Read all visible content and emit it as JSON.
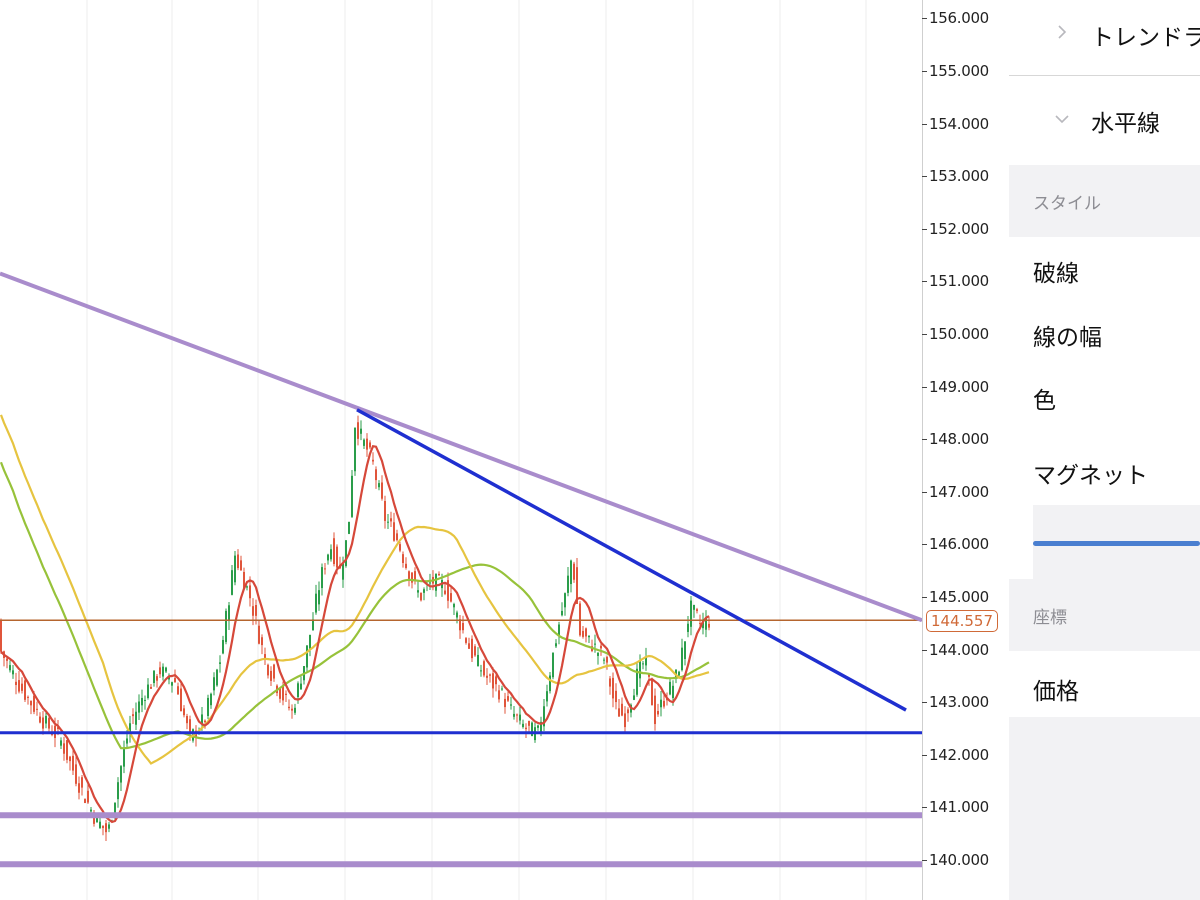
{
  "price_axis": {
    "ticks": [
      "156.000",
      "155.000",
      "154.000",
      "153.000",
      "152.000",
      "151.000",
      "150.000",
      "149.000",
      "148.000",
      "147.000",
      "146.000",
      "145.000",
      "144.000",
      "143.000",
      "142.000",
      "141.000",
      "140.000"
    ],
    "last_price": "144.557"
  },
  "colors": {
    "up_candle": "#2a9d4a",
    "down_candle": "#e0553b",
    "ma_fast": "#d6483a",
    "ma_mid": "#e6c440",
    "ma_slow": "#97c23a",
    "resistance_trend": "#a98ccc",
    "support_trend": "#1f2fd0",
    "horizontal_support": "#1f2fd0",
    "horizontal_lows": "#a98ccc",
    "current_price_line": "#b5652e",
    "accent": "#4a7fd0"
  },
  "panel": {
    "tree": [
      {
        "label": "トレンドラ",
        "icon": "chevron-right-icon"
      },
      {
        "label": "水平線",
        "icon": "chevron-down-icon"
      }
    ],
    "style_header": "スタイル",
    "style_props": [
      "破線",
      "線の幅",
      "色",
      "マグネット"
    ],
    "coord_header": "座標",
    "coord_props": [
      "価格"
    ]
  },
  "chart_data": {
    "type": "candlestick",
    "y_axis_range": [
      139.7,
      156.4
    ],
    "horizontal_lines": [
      142.42,
      140.85,
      139.92,
      144.557
    ],
    "trend_lines": [
      {
        "from": 151.15,
        "to": 144.557
      },
      {
        "from": 148.56,
        "to": 142.85
      }
    ]
  }
}
